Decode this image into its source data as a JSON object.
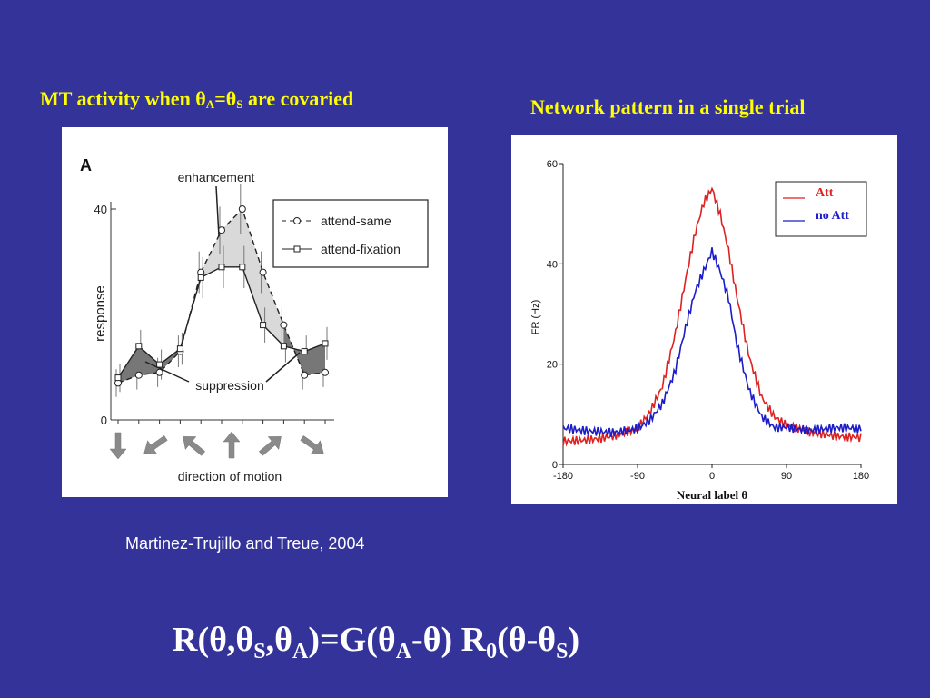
{
  "slide": {
    "left_title": {
      "prefix": "MT activity when θ",
      "sub1": "A",
      "mid": "=θ",
      "sub2": "S",
      "suffix": " are covaried"
    },
    "right_title": "Network pattern in a single trial",
    "citation": "Martinez-Trujillo and Treue, 2004",
    "equation": {
      "p1": "R(θ,θ",
      "s1": "S",
      "p2": ",θ",
      "s2": "A",
      "p3": ")=G(θ",
      "s3": "A",
      "p4": "-θ) R",
      "s4": "0",
      "p5": "(θ-θ",
      "s5": "S",
      "p6": ")"
    }
  },
  "chart_data": [
    {
      "type": "line",
      "panel_label": "A",
      "xlabel": "direction of motion",
      "ylabel": "response",
      "ylim": [
        0,
        40
      ],
      "yticks": [
        "0",
        "40"
      ],
      "x": [
        1,
        2,
        3,
        4,
        5,
        6,
        7,
        8,
        9,
        10,
        11
      ],
      "series": [
        {
          "name": "attend-same",
          "marker": "circle",
          "style": "dashed",
          "values": [
            7,
            8.5,
            9,
            13,
            28,
            36,
            40,
            28,
            18,
            8.5,
            9
          ]
        },
        {
          "name": "attend-fixation",
          "marker": "square",
          "style": "solid",
          "values": [
            8,
            14,
            10.5,
            13.5,
            27,
            29,
            29,
            18,
            14,
            13,
            14.5
          ]
        }
      ],
      "annotations": [
        "enhancement",
        "suppression"
      ],
      "direction_arrows": [
        "down",
        "down-left",
        "up-left",
        "up",
        "up-right",
        "down-right"
      ],
      "legend_position": "top-right",
      "colors": {
        "line": "#222222",
        "enhancement_fill": "#d9d9d9",
        "suppression_fill": "#777777"
      }
    },
    {
      "type": "line",
      "xlabel": "Neural label θ",
      "ylabel": "FR (Hz)",
      "xlim": [
        -180,
        180
      ],
      "ylim": [
        0,
        60
      ],
      "xticks": [
        "-180",
        "-90",
        "0",
        "90",
        "180"
      ],
      "yticks": [
        "0",
        "20",
        "40",
        "60"
      ],
      "x": [
        -180,
        -150,
        -120,
        -90,
        -75,
        -60,
        -45,
        -30,
        -20,
        -10,
        0,
        10,
        20,
        30,
        45,
        60,
        75,
        90,
        120,
        150,
        180
      ],
      "series": [
        {
          "name": "Att",
          "color": "#dd2222",
          "values": [
            5,
            5.5,
            6,
            7,
            10,
            15,
            25,
            38,
            46,
            52,
            55,
            50,
            43,
            34,
            22,
            14,
            10,
            8,
            6,
            5,
            5
          ]
        },
        {
          "name": "no Att",
          "color": "#1c1cc8",
          "values": [
            7,
            7,
            7,
            7.5,
            9,
            12,
            18,
            28,
            34,
            38,
            42,
            38,
            33,
            24,
            15,
            10,
            8,
            8,
            7,
            7,
            6.5
          ]
        }
      ],
      "legend_position": "top-right"
    }
  ]
}
